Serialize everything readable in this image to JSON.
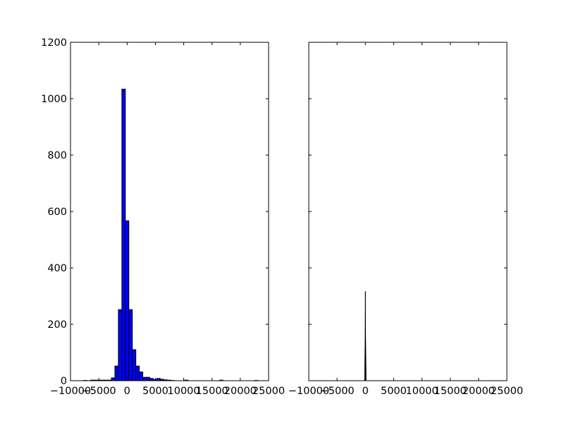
{
  "chart_data": [
    {
      "type": "bar",
      "subtype": "histogram",
      "title": "",
      "xlabel": "",
      "ylabel": "",
      "xlim": [
        -10000,
        25000
      ],
      "ylim": [
        0,
        1200
      ],
      "grid": false,
      "bar_color": "#0000ff",
      "edge_color": "#000000",
      "bin_start": -7700,
      "bin_width": 616,
      "counts": [
        1,
        0,
        2,
        2,
        2,
        2,
        2,
        2,
        10,
        52,
        252,
        1034,
        567,
        252,
        110,
        52,
        31,
        12,
        12,
        8,
        4,
        8,
        5,
        3,
        2,
        1,
        0,
        0,
        0,
        2,
        0,
        0,
        0,
        0,
        0,
        0,
        0,
        0,
        0,
        2,
        0,
        0,
        0,
        0,
        0,
        0,
        0,
        0,
        0,
        1
      ],
      "xticks": [
        "−10000",
        "−5000",
        "0",
        "5000",
        "10000",
        "15000",
        "20000",
        "25000"
      ],
      "xtick_values": [
        -10000,
        -5000,
        0,
        5000,
        10000,
        15000,
        20000,
        25000
      ],
      "yticks": [
        "0",
        "200",
        "400",
        "600",
        "800",
        "1000",
        "1200"
      ],
      "ytick_values": [
        0,
        200,
        400,
        600,
        800,
        1000,
        1200
      ]
    },
    {
      "type": "bar",
      "subtype": "histogram",
      "title": "",
      "xlabel": "",
      "ylabel": "",
      "xlim": [
        -10000,
        25000
      ],
      "ylim": [
        0,
        1200
      ],
      "grid": false,
      "bar_color": "#000000",
      "peak_x": 0,
      "peak_count": 317,
      "xticks": [
        "−10000",
        "−5000",
        "0",
        "5000",
        "10000",
        "15000",
        "20000",
        "25000"
      ],
      "xtick_values": [
        -10000,
        -5000,
        0,
        5000,
        10000,
        15000,
        20000,
        25000
      ],
      "ytick_values": [
        0,
        200,
        400,
        600,
        800,
        1000,
        1200
      ],
      "ytick_labels_shown": false
    }
  ]
}
